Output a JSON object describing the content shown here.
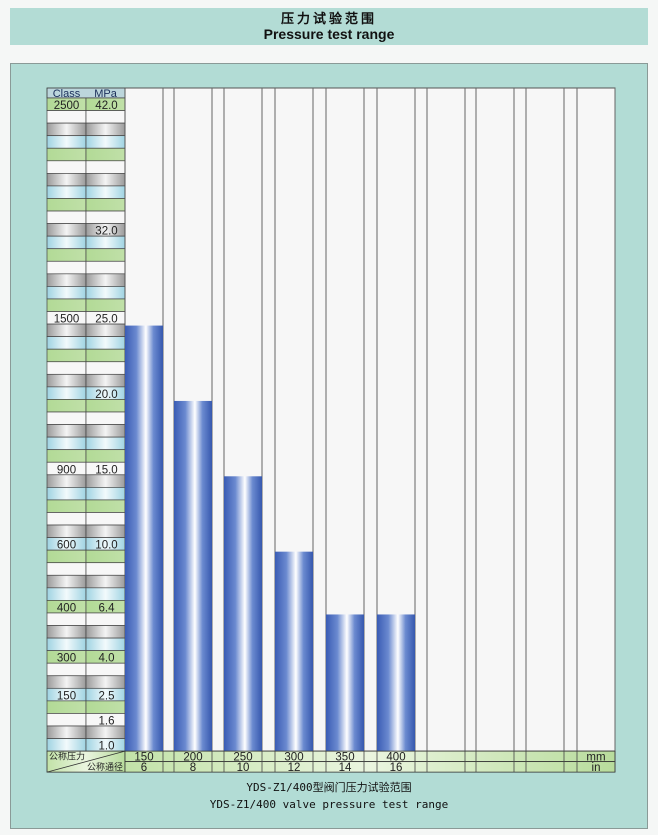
{
  "header": {
    "title_cn": "压力试验范围",
    "title_en": "Pressure test range"
  },
  "chart_data": {
    "type": "bar",
    "title": "YDS-Z1/400型阀门压力试验范围",
    "subtitle": "YDS-Z1/400 valve pressure test range",
    "table_header": {
      "class": "Class",
      "mpa": "MPa"
    },
    "scale_rows": 52,
    "scale_labels": [
      {
        "row": 0,
        "class": "2500",
        "mpa": "42.0"
      },
      {
        "row": 10,
        "class": "",
        "mpa": "32.0"
      },
      {
        "row": 17,
        "class": "1500",
        "mpa": "25.0"
      },
      {
        "row": 23,
        "class": "",
        "mpa": "20.0"
      },
      {
        "row": 29,
        "class": "900",
        "mpa": "15.0"
      },
      {
        "row": 35,
        "class": "600",
        "mpa": "10.0"
      },
      {
        "row": 40,
        "class": "400",
        "mpa": "6.4"
      },
      {
        "row": 44,
        "class": "300",
        "mpa": "4.0"
      },
      {
        "row": 47,
        "class": "150",
        "mpa": "2.5"
      },
      {
        "row": 49,
        "class": "",
        "mpa": "1.6"
      },
      {
        "row": 51,
        "class": "",
        "mpa": "1.0"
      }
    ],
    "row_label_pressure": "公称压力",
    "row_label_diameter": "公称通径",
    "categories_mm": [
      "150",
      "200",
      "250",
      "300",
      "350",
      "400",
      "",
      "",
      "",
      ""
    ],
    "categories_in": [
      "6",
      "8",
      "10",
      "12",
      "14",
      "16",
      "",
      "",
      "",
      ""
    ],
    "unit_mm": "mm",
    "unit_in": "in",
    "values_mpa": [
      25.0,
      20.0,
      15.0,
      10.0,
      6.4,
      6.4
    ],
    "colors": {
      "green": "#b6dc9c",
      "blue": "#a9d9e6",
      "gray": "#a9a9a9",
      "bar": "#3f63b8"
    }
  }
}
